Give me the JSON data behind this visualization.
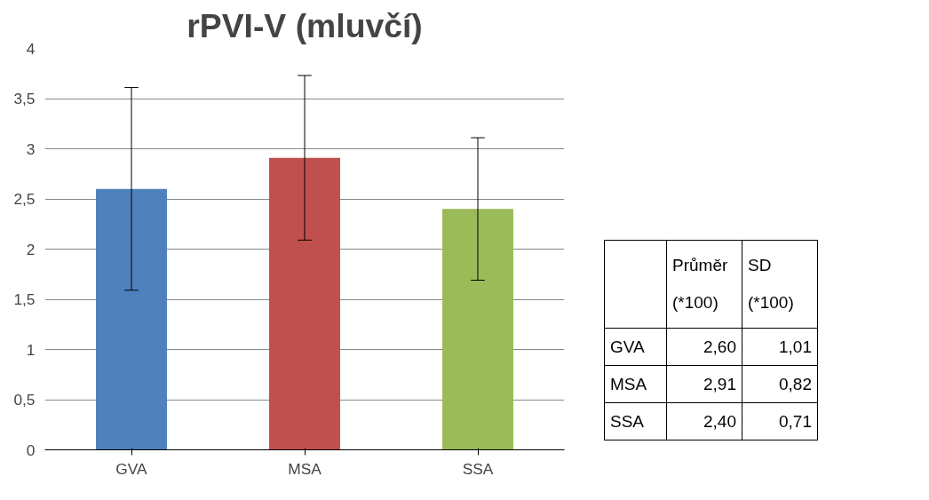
{
  "chart_data": [
    {
      "type": "bar",
      "title": "rPVI-V (mluvčí)",
      "categories": [
        "GVA",
        "MSA",
        "SSA"
      ],
      "values": [
        2.6,
        2.91,
        2.4
      ],
      "colors": [
        "#4f81bd",
        "#c0504d",
        "#9bbb59"
      ],
      "errors": [
        1.01,
        0.82,
        0.71
      ],
      "ylim": [
        0,
        4
      ],
      "yticks": [
        0,
        {
          "value": 0.5,
          "label": "0,5"
        },
        1,
        {
          "value": 1.5,
          "label": "1,5"
        },
        2,
        {
          "value": 2.5,
          "label": "2,5"
        },
        3,
        {
          "value": 3.5,
          "label": "3,5"
        },
        4
      ],
      "grid": "y"
    },
    {
      "type": "other",
      "categories": [
        "GVA",
        "MSA",
        "SSA"
      ],
      "annotations": [
        "Průměr (*100)",
        "SD (*100)",
        "2,60",
        "1,01",
        "2,91",
        "0,82",
        "2,40",
        "0,71"
      ]
    }
  ]
}
